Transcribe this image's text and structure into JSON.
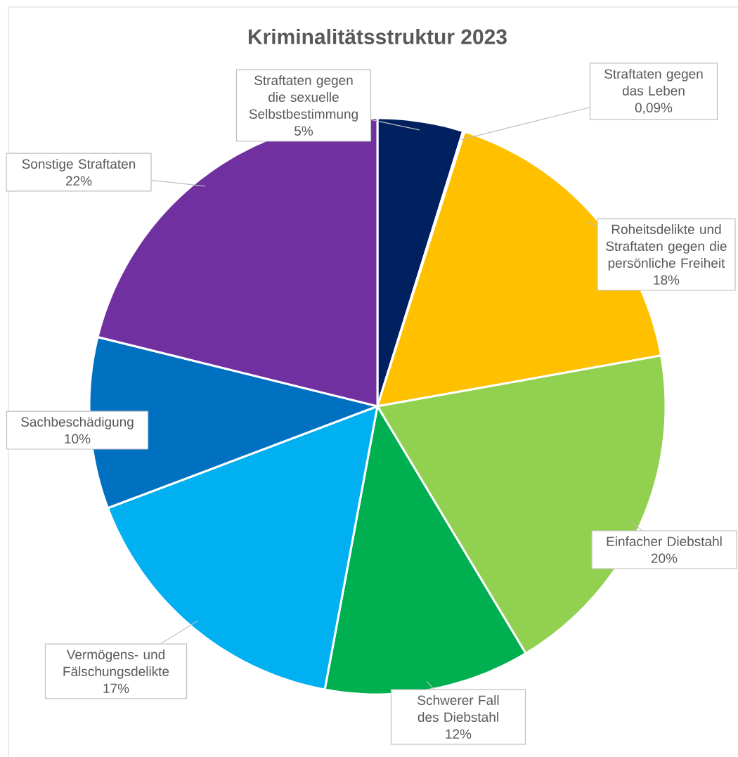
{
  "chart_data": {
    "type": "pie",
    "title": "Kriminalitätsstruktur 2023",
    "categories": [
      "Straftaten gegen die sexuelle Selbstbestimmung",
      "Straftaten gegen das Leben",
      "Roheitsdelikte und Straftaten gegen die persönliche Freiheit",
      "Einfacher Diebstahl",
      "Schwerer Fall des Diebstahl",
      "Vermögens- und Fälschungsdelikte",
      "Sachbeschädigung",
      "Sonstige Straftaten"
    ],
    "values": [
      5,
      0.09,
      18,
      20,
      12,
      17,
      10,
      22
    ],
    "value_labels": [
      "5%",
      "0,09%",
      "18%",
      "20%",
      "12%",
      "17%",
      "10%",
      "22%"
    ],
    "colors": [
      "#002060",
      "#c00000",
      "#ffc000",
      "#92d050",
      "#00b050",
      "#00b0f0",
      "#0070c0",
      "#7030a0"
    ]
  }
}
